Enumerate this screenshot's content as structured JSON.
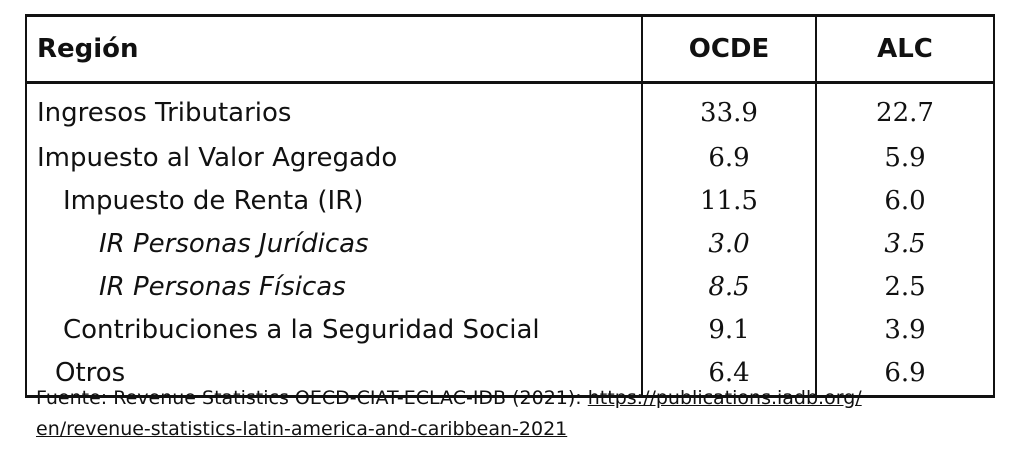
{
  "table": {
    "headers": [
      "Región",
      "OCDE",
      "ALC"
    ],
    "rows": [
      {
        "label": "Ingresos Tributarios",
        "ocde": "33.9",
        "alc": "22.7"
      },
      {
        "label": "Impuesto al Valor Agregado",
        "ocde": "6.9",
        "alc": "5.9"
      },
      {
        "label": "Impuesto de Renta (IR)",
        "ocde": "11.5",
        "alc": "6.0"
      },
      {
        "label": "IR Personas Jurídicas",
        "ocde": "3.0",
        "alc": "3.5"
      },
      {
        "label": "IR Personas Físicas",
        "ocde": "8.5",
        "alc": "2.5"
      },
      {
        "label": "Contribuciones a la Seguridad Social",
        "ocde": "9.1",
        "alc": "3.9"
      },
      {
        "label": "Otros",
        "ocde": "6.4",
        "alc": "6.9"
      }
    ]
  },
  "source": {
    "prefix": "Fuente: Revenue Statistics OECD-CIAT-ECLAC-IDB (2021): ",
    "link_line1": "https://publications.iadb.org/",
    "link_line2": "en/revenue-statistics-latin-america-and-caribbean-2021"
  }
}
